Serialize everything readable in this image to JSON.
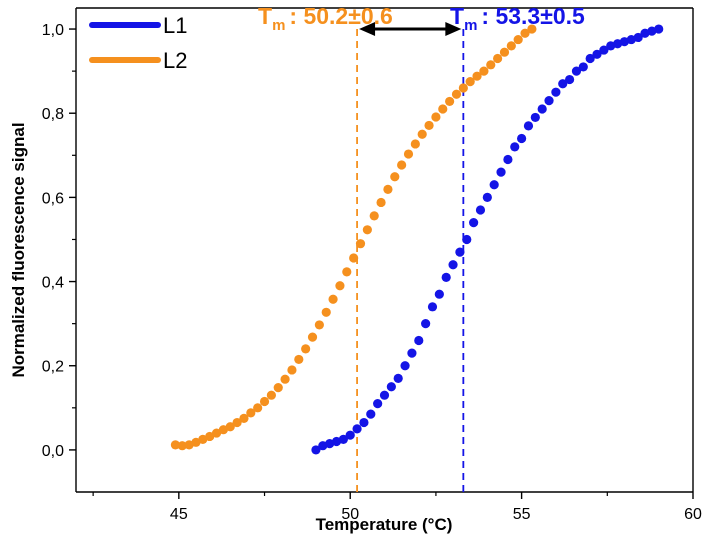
{
  "chart_data": {
    "type": "scatter",
    "xlabel": "Temperature (°C)",
    "ylabel": "Normalized fluorescence signal",
    "xlim": [
      42,
      60
    ],
    "ylim": [
      -0.1,
      1.05
    ],
    "x_ticks": [
      45,
      50,
      55,
      60
    ],
    "y_ticks": [
      0,
      0.2,
      0.4,
      0.6,
      0.8,
      1.0
    ],
    "y_tick_labels": [
      "0,0",
      "0,2",
      "0,4",
      "0,6",
      "0,8",
      "1,0"
    ],
    "legend": {
      "placement": "top-left",
      "entries": [
        {
          "label": "L1",
          "color": "#1414e6"
        },
        {
          "label": "L2",
          "color": "#f5901e"
        }
      ]
    },
    "series": [
      {
        "name": "L1",
        "color": "#1414e6",
        "x": [
          49.0,
          49.2,
          49.4,
          49.6,
          49.8,
          50.0,
          50.2,
          50.4,
          50.6,
          50.8,
          51.0,
          51.2,
          51.4,
          51.6,
          51.8,
          52.0,
          52.2,
          52.4,
          52.6,
          52.8,
          53.0,
          53.2,
          53.4,
          53.6,
          53.8,
          54.0,
          54.2,
          54.4,
          54.6,
          54.8,
          55.0,
          55.2,
          55.4,
          55.6,
          55.8,
          56.0,
          56.2,
          56.4,
          56.6,
          56.8,
          57.0,
          57.2,
          57.4,
          57.6,
          57.8,
          58.0,
          58.2,
          58.4,
          58.6,
          58.8,
          59.0
        ],
        "y": [
          0.0,
          0.01,
          0.015,
          0.02,
          0.025,
          0.035,
          0.05,
          0.065,
          0.085,
          0.11,
          0.13,
          0.15,
          0.17,
          0.2,
          0.23,
          0.26,
          0.3,
          0.34,
          0.37,
          0.41,
          0.44,
          0.47,
          0.5,
          0.54,
          0.57,
          0.6,
          0.63,
          0.66,
          0.69,
          0.72,
          0.74,
          0.77,
          0.79,
          0.81,
          0.83,
          0.85,
          0.87,
          0.88,
          0.9,
          0.91,
          0.93,
          0.94,
          0.95,
          0.96,
          0.965,
          0.97,
          0.975,
          0.98,
          0.99,
          0.995,
          1.0
        ]
      },
      {
        "name": "L2",
        "color": "#f5901e",
        "x": [
          44.9,
          45.1,
          45.3,
          45.5,
          45.7,
          45.9,
          46.1,
          46.3,
          46.5,
          46.7,
          46.9,
          47.1,
          47.3,
          47.5,
          47.7,
          47.9,
          48.1,
          48.3,
          48.5,
          48.7,
          48.9,
          49.1,
          49.3,
          49.5,
          49.7,
          49.9,
          50.1,
          50.3,
          50.5,
          50.7,
          50.9,
          51.1,
          51.3,
          51.5,
          51.7,
          51.9,
          52.1,
          52.3,
          52.5,
          52.7,
          52.9,
          53.1,
          53.3,
          53.5,
          53.7,
          53.9,
          54.1,
          54.3,
          54.5,
          54.7,
          54.9,
          55.1,
          55.3
        ],
        "y": [
          0.012,
          0.01,
          0.012,
          0.018,
          0.025,
          0.032,
          0.04,
          0.048,
          0.055,
          0.065,
          0.075,
          0.088,
          0.1,
          0.115,
          0.13,
          0.148,
          0.168,
          0.19,
          0.215,
          0.24,
          0.268,
          0.297,
          0.327,
          0.358,
          0.39,
          0.423,
          0.456,
          0.49,
          0.523,
          0.556,
          0.588,
          0.619,
          0.649,
          0.677,
          0.703,
          0.727,
          0.75,
          0.771,
          0.791,
          0.81,
          0.828,
          0.845,
          0.86,
          0.875,
          0.888,
          0.9,
          0.915,
          0.93,
          0.945,
          0.96,
          0.975,
          0.99,
          1.0
        ]
      }
    ],
    "tm_markers": [
      {
        "series": "L2",
        "x": 50.2,
        "color": "#f5901e",
        "prefix": "T",
        "subscript": "m",
        "value": ": 50.2±0.6"
      },
      {
        "series": "L1",
        "x": 53.3,
        "color": "#1414e6",
        "prefix": "T",
        "subscript": "m",
        "value": ": 53.3±0.5"
      }
    ],
    "arrow": {
      "from_x": 50.2,
      "to_x": 53.3,
      "y": 1.0,
      "color": "#000000"
    }
  }
}
